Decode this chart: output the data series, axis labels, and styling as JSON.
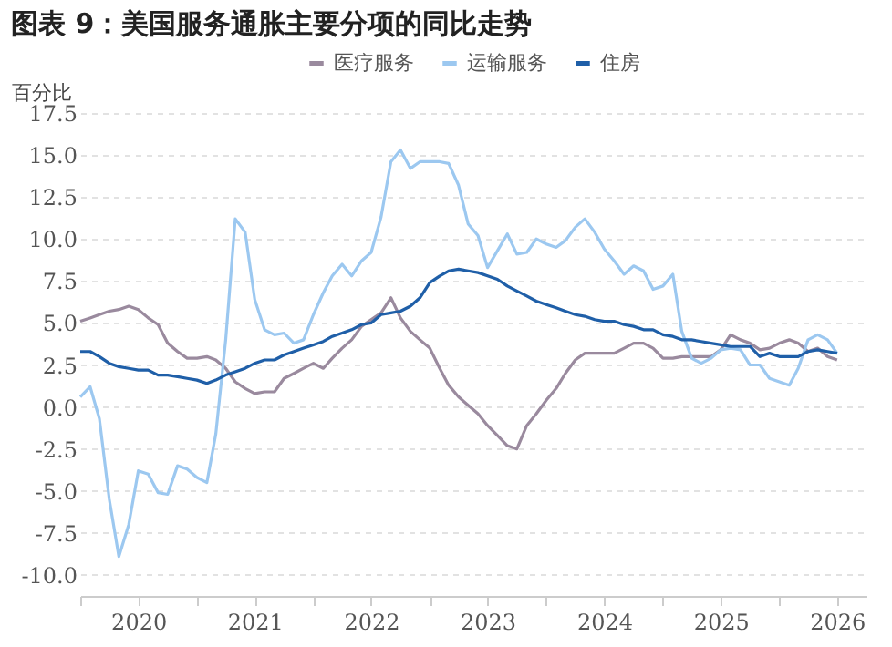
{
  "chart_data": {
    "type": "line",
    "title": "图表 9：美国服务通胀主要分项的同比走势",
    "ylabel": "百分比",
    "x": [
      "2020-01",
      "2020-02",
      "2020-03",
      "2020-04",
      "2020-05",
      "2020-06",
      "2020-07",
      "2020-08",
      "2020-09",
      "2020-10",
      "2020-11",
      "2020-12",
      "2021-01",
      "2021-02",
      "2021-03",
      "2021-04",
      "2021-05",
      "2021-06",
      "2021-07",
      "2021-08",
      "2021-09",
      "2021-10",
      "2021-11",
      "2021-12",
      "2022-01",
      "2022-02",
      "2022-03",
      "2022-04",
      "2022-05",
      "2022-06",
      "2022-07",
      "2022-08",
      "2022-09",
      "2022-10",
      "2022-11",
      "2022-12",
      "2023-01",
      "2023-02",
      "2023-03",
      "2023-04",
      "2023-05",
      "2023-06",
      "2023-07",
      "2023-08",
      "2023-09",
      "2023-10",
      "2023-11",
      "2023-12",
      "2024-01",
      "2024-02",
      "2024-03",
      "2024-04",
      "2024-05",
      "2024-06",
      "2024-07",
      "2024-08",
      "2024-09",
      "2024-10",
      "2024-11",
      "2024-12",
      "2025-01",
      "2025-02",
      "2025-03",
      "2025-04",
      "2025-05",
      "2025-06",
      "2025-07",
      "2025-08",
      "2025-09",
      "2025-10",
      "2025-11",
      "2025-12",
      "2026-01",
      "2026-02",
      "2026-03",
      "2026-04",
      "2026-05",
      "2026-06",
      "2026-07"
    ],
    "series": [
      {
        "name": "医疗服务",
        "color": "#9a8a9e",
        "values": [
          5.1,
          5.3,
          5.5,
          5.7,
          5.8,
          6.0,
          5.8,
          5.3,
          4.9,
          3.8,
          3.3,
          2.9,
          2.9,
          3.0,
          2.8,
          2.3,
          1.5,
          1.1,
          0.8,
          0.9,
          0.9,
          1.7,
          2.0,
          2.3,
          2.6,
          2.3,
          2.9,
          3.5,
          4.0,
          4.8,
          5.2,
          5.6,
          6.5,
          5.3,
          4.5,
          4.0,
          3.5,
          2.3,
          1.3,
          0.6,
          0.1,
          -0.4,
          -1.1,
          -1.7,
          -2.3,
          -2.5,
          -1.1,
          -0.4,
          0.4,
          1.1,
          2.0,
          2.8,
          3.2,
          3.2,
          3.2,
          3.2,
          3.5,
          3.8,
          3.8,
          3.5,
          2.9,
          2.9,
          3.0,
          3.0,
          3.0,
          3.0,
          3.4,
          4.3,
          4.0,
          3.8,
          3.4,
          3.5,
          3.8,
          4.0,
          3.8,
          3.3,
          3.5,
          3.0,
          2.8
        ]
      },
      {
        "name": "运输服务",
        "color": "#9cc8f0",
        "values": [
          0.6,
          1.2,
          -0.7,
          -5.5,
          -8.9,
          -7.0,
          -3.8,
          -4.0,
          -5.1,
          -5.2,
          -3.5,
          -3.7,
          -4.2,
          -4.5,
          -1.6,
          4.0,
          11.2,
          10.4,
          6.4,
          4.6,
          4.3,
          4.4,
          3.8,
          4.0,
          5.5,
          6.8,
          7.8,
          8.5,
          7.8,
          8.7,
          9.2,
          11.3,
          14.6,
          15.3,
          14.2,
          14.6,
          14.6,
          14.6,
          14.5,
          13.2,
          10.9,
          10.2,
          8.3,
          9.3,
          10.3,
          9.1,
          9.2,
          10.0,
          9.7,
          9.5,
          9.9,
          10.7,
          11.2,
          10.4,
          9.4,
          8.7,
          7.9,
          8.4,
          8.1,
          7.0,
          7.2,
          7.9,
          4.5,
          2.9,
          2.6,
          2.9,
          3.4,
          3.5,
          3.4,
          2.5,
          2.5,
          1.7,
          1.5,
          1.3,
          2.3,
          4.0,
          4.3,
          4.0,
          3.2
        ]
      },
      {
        "name": "住房",
        "color": "#1f5fa8",
        "values": [
          3.3,
          3.3,
          3.0,
          2.6,
          2.4,
          2.3,
          2.2,
          2.2,
          1.9,
          1.9,
          1.8,
          1.7,
          1.6,
          1.4,
          1.6,
          1.9,
          2.1,
          2.3,
          2.6,
          2.8,
          2.8,
          3.1,
          3.3,
          3.5,
          3.7,
          3.9,
          4.2,
          4.4,
          4.6,
          4.9,
          5.0,
          5.5,
          5.6,
          5.7,
          6.0,
          6.5,
          7.4,
          7.8,
          8.1,
          8.2,
          8.1,
          8.0,
          7.8,
          7.6,
          7.2,
          6.9,
          6.6,
          6.3,
          6.1,
          5.9,
          5.7,
          5.5,
          5.4,
          5.2,
          5.1,
          5.1,
          4.9,
          4.8,
          4.6,
          4.6,
          4.3,
          4.2,
          4.0,
          4.0,
          3.9,
          3.8,
          3.7,
          3.6,
          3.6,
          3.6,
          3.0,
          3.2,
          3.0,
          3.0,
          3.0,
          3.3,
          3.4,
          3.3,
          3.2
        ]
      }
    ],
    "xlim": [
      "2020-01",
      "2026-10"
    ],
    "xticks": [
      {
        "value": "2020-01",
        "label": null
      },
      {
        "value": "2020-07",
        "label": "2020"
      },
      {
        "value": "2021-01",
        "label": null
      },
      {
        "value": "2021-07",
        "label": "2021"
      },
      {
        "value": "2022-01",
        "label": null
      },
      {
        "value": "2022-07",
        "label": "2022"
      },
      {
        "value": "2023-01",
        "label": null
      },
      {
        "value": "2023-07",
        "label": "2023"
      },
      {
        "value": "2024-01",
        "label": null
      },
      {
        "value": "2024-07",
        "label": "2024"
      },
      {
        "value": "2025-01",
        "label": null
      },
      {
        "value": "2025-07",
        "label": "2025"
      },
      {
        "value": "2026-01",
        "label": null
      },
      {
        "value": "2026-07",
        "label": "2026"
      }
    ],
    "ylim": [
      -11.25,
      17.5
    ],
    "yticks": [
      {
        "value": -10,
        "label": "-10.0"
      },
      {
        "value": -7.5,
        "label": "-7.5"
      },
      {
        "value": -5,
        "label": "-5.0"
      },
      {
        "value": -2.5,
        "label": "-2.5"
      },
      {
        "value": 0,
        "label": "0.0"
      },
      {
        "value": 2.5,
        "label": "2.5"
      },
      {
        "value": 5,
        "label": "5.0"
      },
      {
        "value": 7.5,
        "label": "7.5"
      },
      {
        "value": 10,
        "label": "10.0"
      },
      {
        "value": 12.5,
        "label": "12.5"
      },
      {
        "value": 15,
        "label": "15.0"
      },
      {
        "value": 17.5,
        "label": "17.5"
      }
    ],
    "grid": "y",
    "legend": "top"
  }
}
